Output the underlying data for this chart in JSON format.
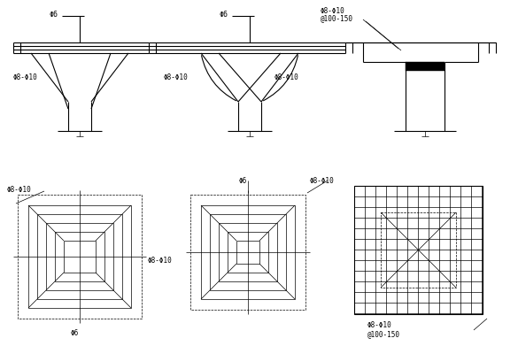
{
  "bg_color": "#ffffff",
  "line_color": "#000000",
  "lw": 0.8,
  "tlw": 0.5,
  "fig_width": 5.85,
  "fig_height": 3.91,
  "phi6": "Φ6",
  "phi8_10": "Φ8-Φ10",
  "spacing": "@100-150",
  "phi8_10b": "Φ8-Φ10",
  "spacingb": "@100-150"
}
